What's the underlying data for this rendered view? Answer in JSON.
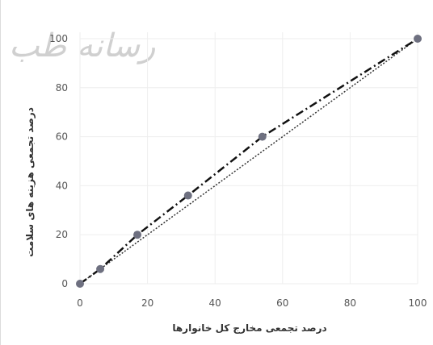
{
  "watermark_text": "رسانه طب",
  "chart_data": {
    "type": "scatter",
    "xlabel": "درصد تجمعی مخارج کل خانوارها",
    "ylabel": "درصد تجمعی هزینه های سلامت",
    "xlim": [
      0,
      100
    ],
    "ylim": [
      0,
      100
    ],
    "xticks": [
      0,
      20,
      40,
      60,
      80,
      100
    ],
    "yticks": [
      0,
      20,
      40,
      60,
      80,
      100
    ],
    "grid": true,
    "colors": {
      "points": "#6e7080",
      "equality_line": "#333333",
      "concentration_curve": "#111111",
      "grid": "#eeeeee"
    },
    "points": [
      {
        "x": 0,
        "y": 0
      },
      {
        "x": 6,
        "y": 6
      },
      {
        "x": 17,
        "y": 20
      },
      {
        "x": 32,
        "y": 36
      },
      {
        "x": 54,
        "y": 60
      },
      {
        "x": 100,
        "y": 100
      }
    ],
    "series": [
      {
        "style": "dotted",
        "x": [
          0,
          100
        ],
        "y": [
          0,
          100
        ]
      },
      {
        "style": "dash-dot",
        "x": [
          0,
          6,
          17,
          32,
          54,
          100
        ],
        "y": [
          0,
          6,
          20,
          36,
          60,
          100
        ]
      }
    ]
  }
}
